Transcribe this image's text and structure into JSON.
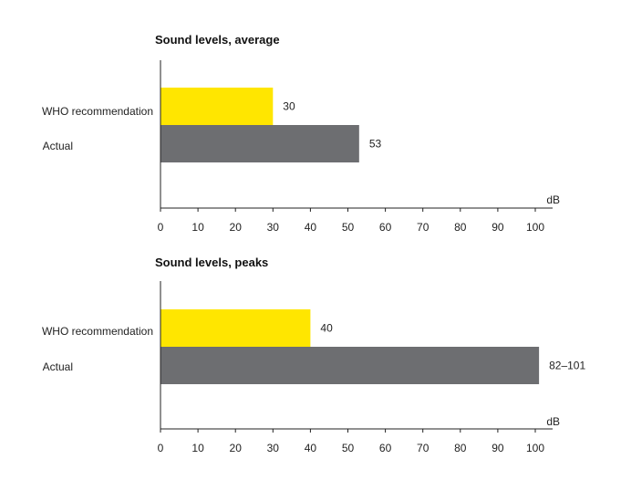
{
  "chart_data": [
    {
      "type": "bar",
      "orientation": "horizontal",
      "title": "Sound levels, average",
      "categories": [
        "WHO recommendation",
        "Actual"
      ],
      "values": [
        30,
        53
      ],
      "value_labels": [
        "30",
        "53"
      ],
      "colors": [
        "#ffe600",
        "#6d6e71"
      ],
      "xlabel": "dB",
      "xlim": [
        0,
        100
      ],
      "xticks": [
        "0",
        "10",
        "20",
        "30",
        "40",
        "50",
        "60",
        "70",
        "80",
        "90",
        "100"
      ],
      "grid": false
    },
    {
      "type": "bar",
      "orientation": "horizontal",
      "title": "Sound levels, peaks",
      "categories": [
        "WHO recommendation",
        "Actual"
      ],
      "values": [
        40,
        101
      ],
      "value_labels": [
        "40",
        "82–101"
      ],
      "colors": [
        "#ffe600",
        "#6d6e71"
      ],
      "xlabel": "dB",
      "xlim": [
        0,
        100
      ],
      "xticks": [
        "0",
        "10",
        "20",
        "30",
        "40",
        "50",
        "60",
        "70",
        "80",
        "90",
        "100"
      ],
      "grid": false
    }
  ]
}
